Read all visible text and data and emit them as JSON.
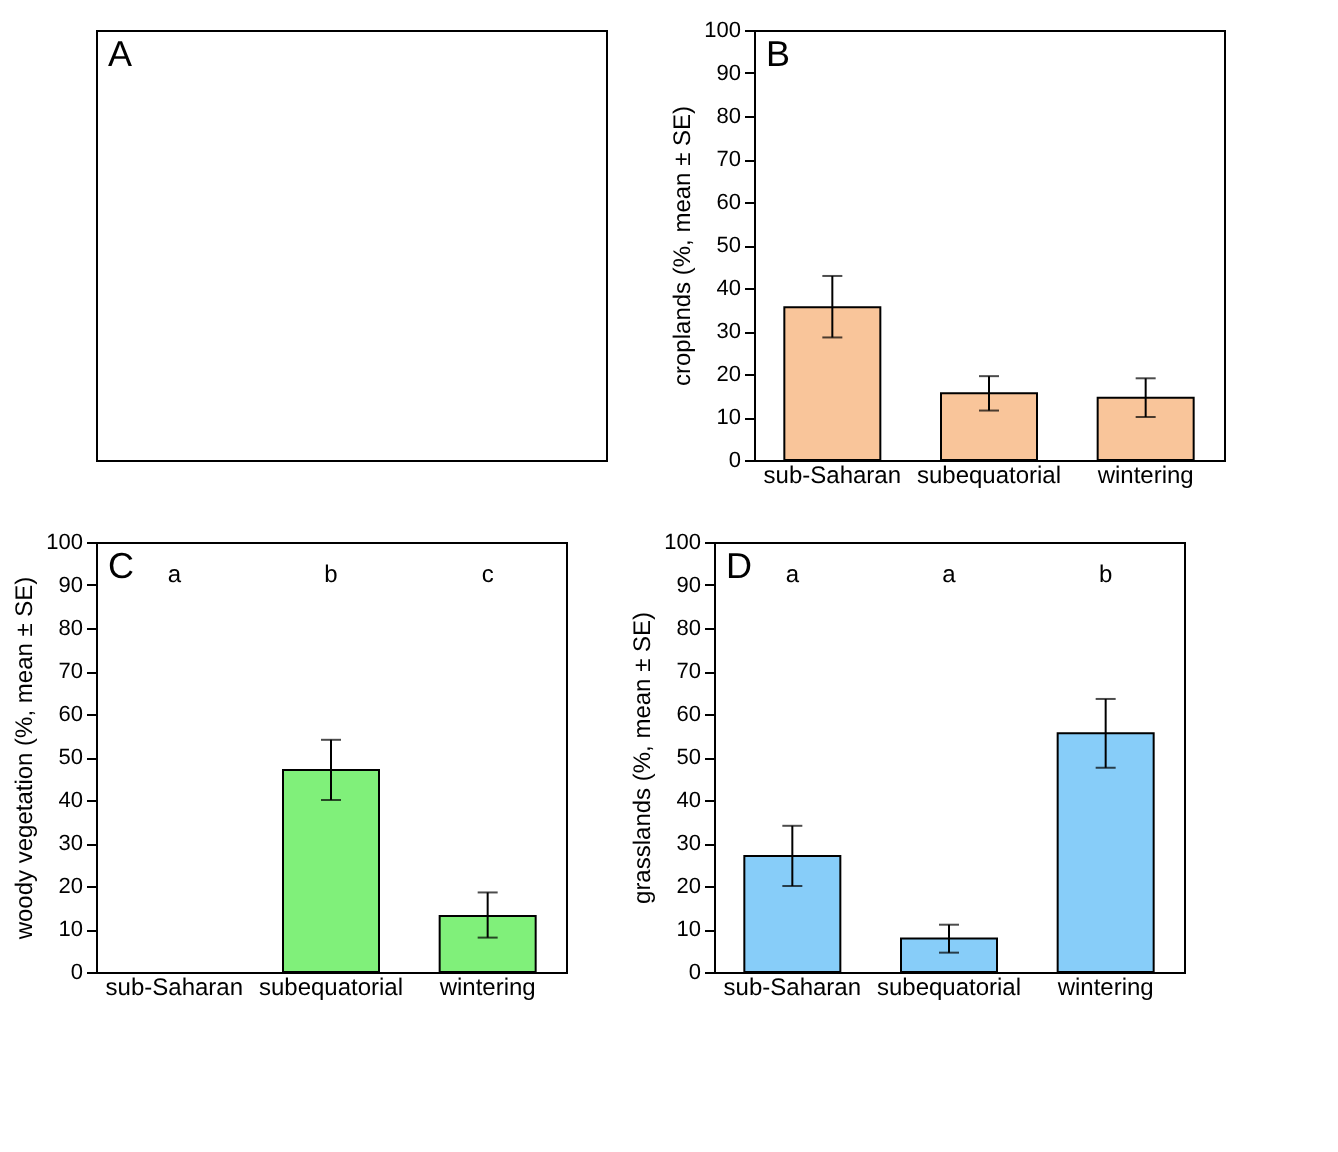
{
  "chart_data": [
    {
      "type": "other",
      "annotations": [
        "A"
      ]
    },
    {
      "type": "bar",
      "ylabel": "croplands (%, mean ± SE)",
      "categories": [
        "sub-Saharan",
        "subequatorial",
        "wintering"
      ],
      "values": [
        35.5,
        15.5,
        14.5
      ],
      "errors": [
        [
          28.5,
          42.8
        ],
        [
          11.5,
          19.5
        ],
        [
          10,
          19
        ]
      ],
      "color": "#f9c59a",
      "ylim": [
        0,
        100
      ],
      "yticks": [
        0,
        10,
        20,
        30,
        40,
        50,
        60,
        70,
        80,
        90,
        100
      ],
      "annotations": [
        "B"
      ]
    },
    {
      "type": "bar",
      "ylabel": "woody vegetation (%, mean ± SE)",
      "categories": [
        "sub-Saharan",
        "subequatorial",
        "wintering"
      ],
      "values": [
        null,
        47,
        13
      ],
      "errors": [
        null,
        [
          40,
          54
        ],
        [
          8,
          18.5
        ]
      ],
      "color": "#80f07a",
      "ylim": [
        0,
        100
      ],
      "yticks": [
        0,
        10,
        20,
        30,
        40,
        50,
        60,
        70,
        80,
        90,
        100
      ],
      "annotations": [
        "C",
        "a",
        "b",
        "c"
      ]
    },
    {
      "type": "bar",
      "ylabel": "grasslands (%, mean ± SE)",
      "categories": [
        "sub-Saharan",
        "subequatorial",
        "wintering"
      ],
      "values": [
        27,
        7.8,
        55.5
      ],
      "errors": [
        [
          20,
          34
        ],
        [
          4.5,
          11
        ],
        [
          47.5,
          63.5
        ]
      ],
      "color": "#87cdf9",
      "ylim": [
        0,
        100
      ],
      "yticks": [
        0,
        10,
        20,
        30,
        40,
        50,
        60,
        70,
        80,
        90,
        100
      ],
      "annotations": [
        "D",
        "a",
        "a",
        "b"
      ]
    }
  ]
}
